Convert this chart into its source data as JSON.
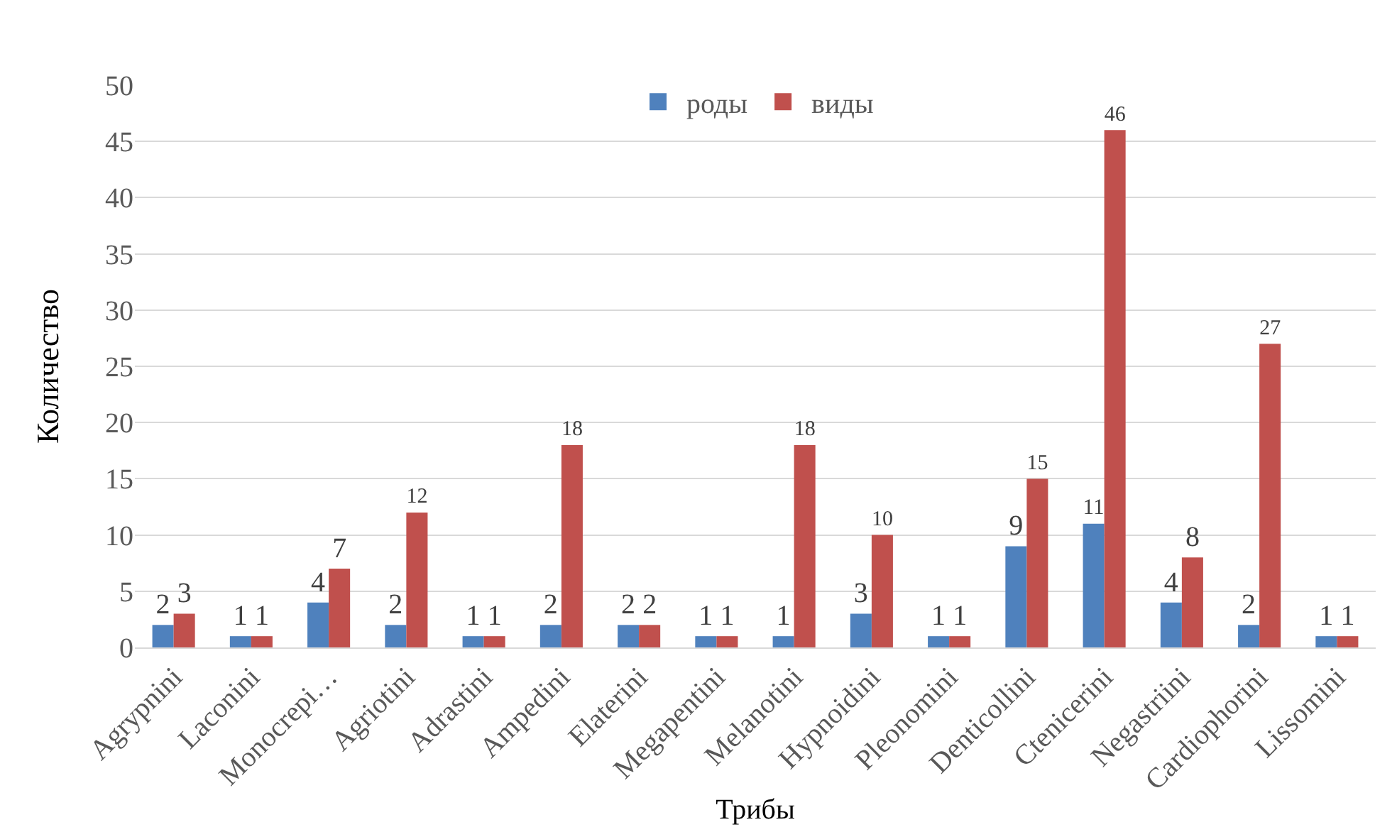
{
  "chart_data": {
    "type": "bar",
    "xlabel": "Трибы",
    "ylabel": "Количество",
    "categories": [
      "Agrypnini",
      "Laconini",
      "Monocrepi…",
      "Agriotini",
      "Adrastini",
      "Ampedini",
      "Elaterini",
      "Megapentini",
      "Melanotini",
      "Hypnoidini",
      "Pleonomini",
      "Denticollini",
      "Ctenicerini",
      "Negastriini",
      "Cardiophorini",
      "Lissomini"
    ],
    "series": [
      {
        "name": "роды",
        "color": "#4f81bd",
        "values": [
          2,
          1,
          4,
          2,
          1,
          2,
          2,
          1,
          1,
          3,
          1,
          9,
          11,
          4,
          2,
          1
        ]
      },
      {
        "name": "виды",
        "color": "#c0504d",
        "values": [
          3,
          1,
          7,
          12,
          1,
          18,
          2,
          1,
          18,
          10,
          1,
          15,
          46,
          8,
          27,
          1
        ]
      }
    ],
    "ylim": [
      0,
      50
    ],
    "yticks": [
      0,
      5,
      10,
      15,
      20,
      25,
      30,
      35,
      40,
      45,
      50
    ],
    "grid": "y",
    "legend": "top",
    "data_labels": true
  }
}
